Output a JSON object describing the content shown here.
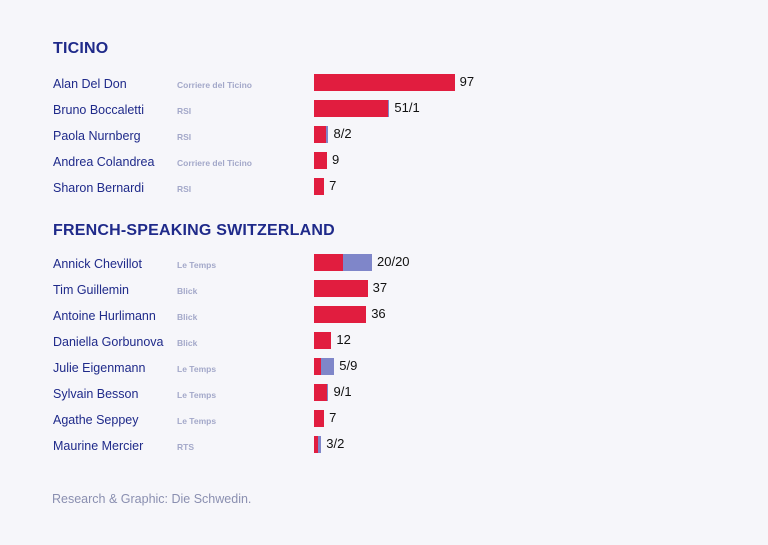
{
  "footer": "Research & Graphic: Die Schwedin.",
  "colors": {
    "primary": "#e11d3f",
    "secondary": "#7f86c9",
    "title": "#1f2a8a",
    "outlet": "#a3a8c9"
  },
  "chart_data": {
    "type": "bar",
    "orientation": "horizontal",
    "stacked": true,
    "max_value": 100,
    "groups": [
      {
        "title": "TICINO",
        "rows": [
          {
            "name": "Alan Del Don",
            "outlet": "Corriere del Ticino",
            "label": "97",
            "values": [
              97,
              0
            ]
          },
          {
            "name": "Bruno Boccaletti",
            "outlet": "RSI",
            "label": "51/1",
            "values": [
              51,
              1
            ]
          },
          {
            "name": "Paola Nurnberg",
            "outlet": "RSI",
            "label": "8/2",
            "values": [
              8,
              2
            ]
          },
          {
            "name": "Andrea Colandrea",
            "outlet": "Corriere del Ticino",
            "label": "9",
            "values": [
              9,
              0
            ]
          },
          {
            "name": "Sharon Bernardi",
            "outlet": "RSI",
            "label": "7",
            "values": [
              7,
              0
            ]
          }
        ]
      },
      {
        "title": "FRENCH-SPEAKING SWITZERLAND",
        "rows": [
          {
            "name": "Annick Chevillot",
            "outlet": "Le Temps",
            "label": "20/20",
            "values": [
              20,
              20
            ]
          },
          {
            "name": "Tim Guillemin",
            "outlet": "Blick",
            "label": "37",
            "values": [
              37,
              0
            ]
          },
          {
            "name": "Antoine Hurlimann",
            "outlet": "Blick",
            "label": "36",
            "values": [
              36,
              0
            ]
          },
          {
            "name": "Daniella Gorbunova",
            "outlet": "Blick",
            "label": "12",
            "values": [
              12,
              0
            ]
          },
          {
            "name": "Julie Eigenmann",
            "outlet": "Le Temps",
            "label": "5/9",
            "values": [
              5,
              9
            ]
          },
          {
            "name": "Sylvain Besson",
            "outlet": "Le Temps",
            "label": "9/1",
            "values": [
              9,
              1
            ]
          },
          {
            "name": "Agathe Seppey",
            "outlet": "Le Temps",
            "label": "7",
            "values": [
              7,
              0
            ]
          },
          {
            "name": "Maurine Mercier",
            "outlet": "RTS",
            "label": "3/2",
            "values": [
              3,
              2
            ]
          }
        ]
      }
    ]
  }
}
